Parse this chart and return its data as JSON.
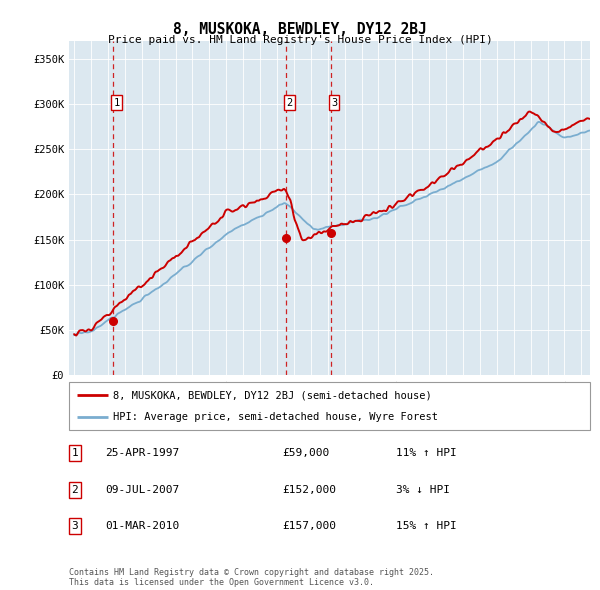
{
  "title": "8, MUSKOKA, BEWDLEY, DY12 2BJ",
  "subtitle": "Price paid vs. HM Land Registry's House Price Index (HPI)",
  "legend_line1": "8, MUSKOKA, BEWDLEY, DY12 2BJ (semi-detached house)",
  "legend_line2": "HPI: Average price, semi-detached house, Wyre Forest",
  "transactions": [
    {
      "num": 1,
      "date": "25-APR-1997",
      "price": 59000,
      "pct": "11%",
      "dir": "↑"
    },
    {
      "num": 2,
      "date": "09-JUL-2007",
      "price": 152000,
      "pct": "3%",
      "dir": "↓"
    },
    {
      "num": 3,
      "date": "01-MAR-2010",
      "price": 157000,
      "pct": "15%",
      "dir": "↑"
    }
  ],
  "transaction_years": [
    1997.32,
    2007.52,
    2010.17
  ],
  "transaction_prices": [
    59000,
    152000,
    157000
  ],
  "ylabel_vals": [
    0,
    50000,
    100000,
    150000,
    200000,
    250000,
    300000,
    350000
  ],
  "ylabel_strs": [
    "£0",
    "£50K",
    "£100K",
    "£150K",
    "£200K",
    "£250K",
    "£300K",
    "£350K"
  ],
  "ylim": [
    0,
    370000
  ],
  "xlim_start": 1994.7,
  "xlim_end": 2025.5,
  "red_color": "#cc0000",
  "blue_color": "#7aadcf",
  "bg_color": "#dce8f0",
  "dashed_color": "#cc0000",
  "grid_color": "#c0cdd8",
  "footnote": "Contains HM Land Registry data © Crown copyright and database right 2025.\nThis data is licensed under the Open Government Licence v3.0."
}
